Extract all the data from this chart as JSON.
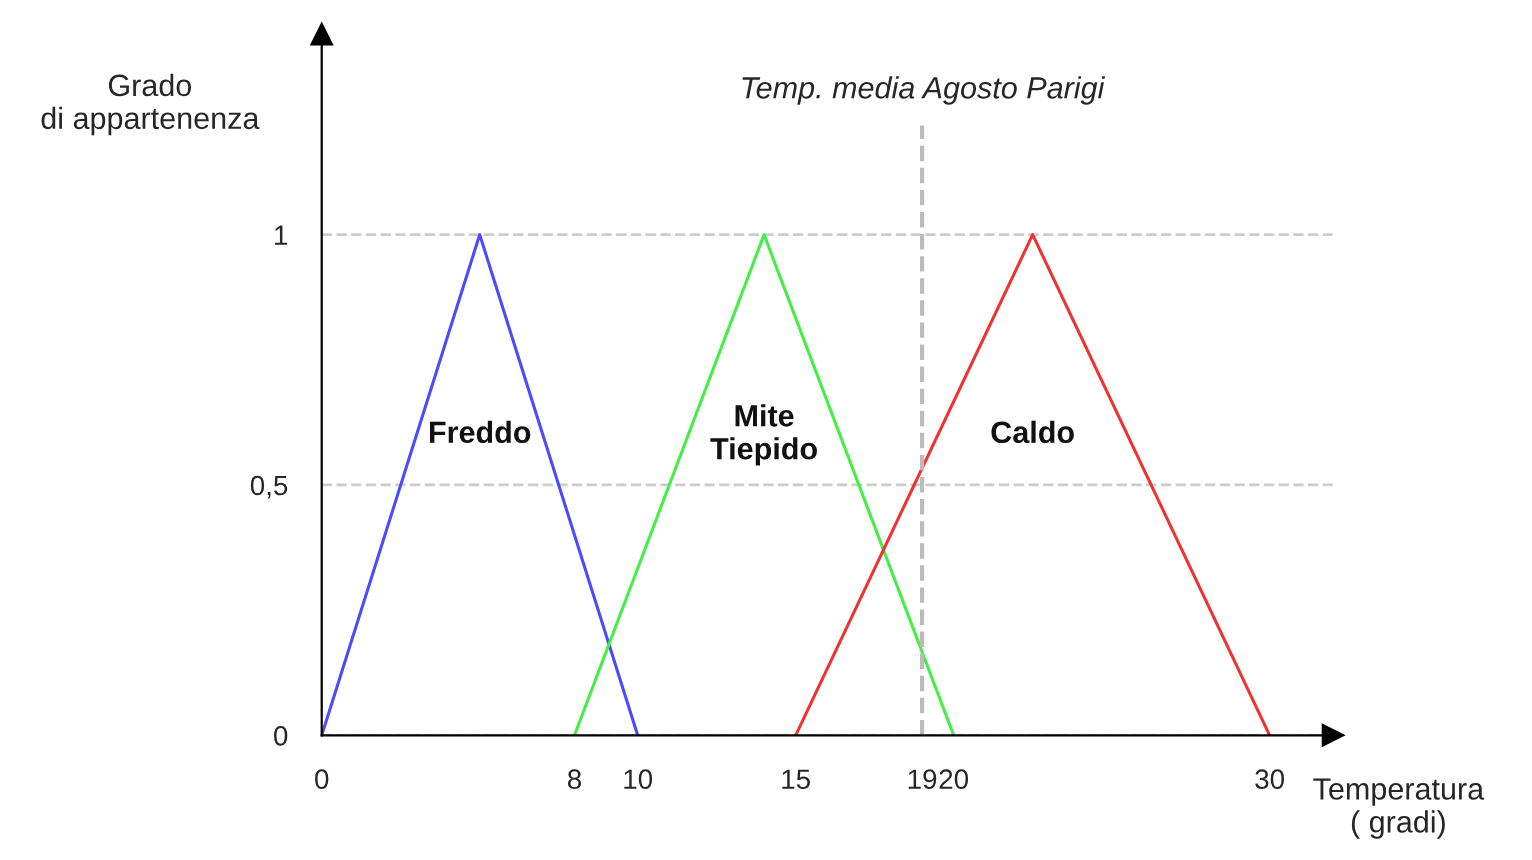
{
  "chart_data": {
    "type": "line",
    "xlabel": "Temperatura\n( gradi)",
    "ylabel": "Grado\ndi appartenenza",
    "xlim": [
      0,
      32
    ],
    "ylim": [
      0,
      1.4
    ],
    "xticks": [
      0,
      8,
      10,
      15,
      19,
      20,
      30
    ],
    "yticks": [
      0,
      {
        "value": 0.5,
        "label": "0,5"
      },
      1
    ],
    "grid": "y",
    "marker": "none",
    "line_style": "solid",
    "legend": false,
    "series": [
      {
        "name": "Freddo",
        "color": "#4a4aff",
        "x": [
          0,
          5,
          10
        ],
        "values": [
          0,
          1,
          0
        ]
      },
      {
        "name": "Mite\nTiepido",
        "color": "#44ee44",
        "x": [
          8,
          14,
          20
        ],
        "values": [
          0,
          1,
          0
        ]
      },
      {
        "name": "Caldo",
        "color": "#ee3333",
        "x": [
          15,
          22.5,
          30
        ],
        "values": [
          0,
          1,
          0
        ]
      }
    ],
    "ref_lines": [
      {
        "axis": "x",
        "value": 19,
        "label": "Temp. media Agosto Parigi",
        "color": "#bbbbbb",
        "line_style": "dashed"
      }
    ]
  }
}
